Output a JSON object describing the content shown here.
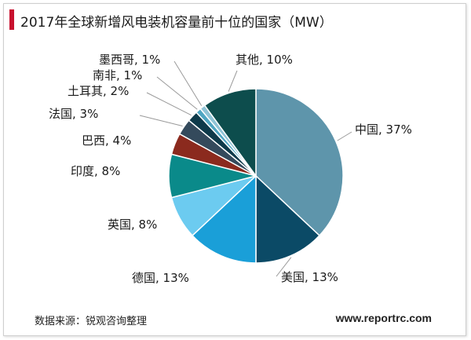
{
  "header": {
    "title": "2017年全球新增风电装机容量前十位的国家（MW）",
    "accent_color": "#c8102e"
  },
  "footer": {
    "source": "数据来源：锐观咨询整理",
    "site": "www.reportrc.com"
  },
  "chart_data": {
    "type": "pie",
    "title": "2017年全球新增风电装机容量前十位的国家（MW）",
    "unit": "%",
    "slices": [
      {
        "name": "中国",
        "value": 37,
        "label": "中国, 37%",
        "color": "#5e95ab"
      },
      {
        "name": "美国",
        "value": 13,
        "label": "美国, 13%",
        "color": "#0b4a66"
      },
      {
        "name": "德国",
        "value": 13,
        "label": "德国, 13%",
        "color": "#1a9fd8"
      },
      {
        "name": "英国",
        "value": 8,
        "label": "英国, 8%",
        "color": "#6ccbf0"
      },
      {
        "name": "印度",
        "value": 8,
        "label": "印度, 8%",
        "color": "#0a8a8a"
      },
      {
        "name": "巴西",
        "value": 4,
        "label": "巴西, 4%",
        "color": "#8b2a1e"
      },
      {
        "name": "法国",
        "value": 3,
        "label": "法国, 3%",
        "color": "#344a5c"
      },
      {
        "name": "土耳其",
        "value": 2,
        "label": "土耳其, 2%",
        "color": "#0e3a4a"
      },
      {
        "name": "南非",
        "value": 1,
        "label": "南非, 1%",
        "color": "#4fa6c2"
      },
      {
        "name": "墨西哥",
        "value": 1,
        "label": "墨西哥, 1%",
        "color": "#8fc4d6"
      },
      {
        "name": "其他",
        "value": 10,
        "label": "其他, 10%",
        "color": "#0d4d4d"
      }
    ],
    "legend": "none"
  }
}
